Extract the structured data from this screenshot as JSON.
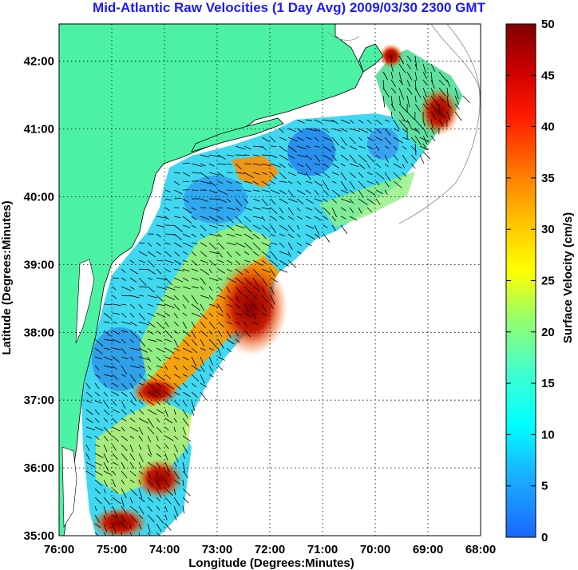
{
  "title": "Mid-Atlantic Raw Velocities (1 Day Avg) 2009/03/30 2300 GMT",
  "x_axis": {
    "label": "Longitude (Degrees:Minutes)",
    "ticks": [
      {
        "value": -76,
        "label": "76:00"
      },
      {
        "value": -75,
        "label": "75:00"
      },
      {
        "value": -74,
        "label": "74:00"
      },
      {
        "value": -73,
        "label": "73:00"
      },
      {
        "value": -72,
        "label": "72:00"
      },
      {
        "value": -71,
        "label": "71:00"
      },
      {
        "value": -70,
        "label": "70:00"
      },
      {
        "value": -69,
        "label": "69:00"
      },
      {
        "value": -68,
        "label": "68:00"
      }
    ],
    "range": [
      -76,
      -68
    ]
  },
  "y_axis": {
    "label": "Latitude (Degrees:Minutes)",
    "ticks": [
      {
        "value": 35,
        "label": "35:00"
      },
      {
        "value": 36,
        "label": "36:00"
      },
      {
        "value": 37,
        "label": "37:00"
      },
      {
        "value": 38,
        "label": "38:00"
      },
      {
        "value": 39,
        "label": "39:00"
      },
      {
        "value": 40,
        "label": "40:00"
      },
      {
        "value": 41,
        "label": "41:00"
      },
      {
        "value": 42,
        "label": "42:00"
      }
    ],
    "range": [
      35,
      42.55
    ]
  },
  "colorbar": {
    "label": "Surface Velocity (cm/s)",
    "ticks": [
      "0",
      "5",
      "10",
      "15",
      "20",
      "25",
      "30",
      "35",
      "40",
      "45",
      "50"
    ],
    "min": 0,
    "max": 50,
    "colormap": "jet"
  },
  "colors": {
    "land": "#4cf2a4",
    "title": "#1a1aff",
    "grid": "#000000",
    "background": "#ffffff"
  },
  "grid": "dotted"
}
